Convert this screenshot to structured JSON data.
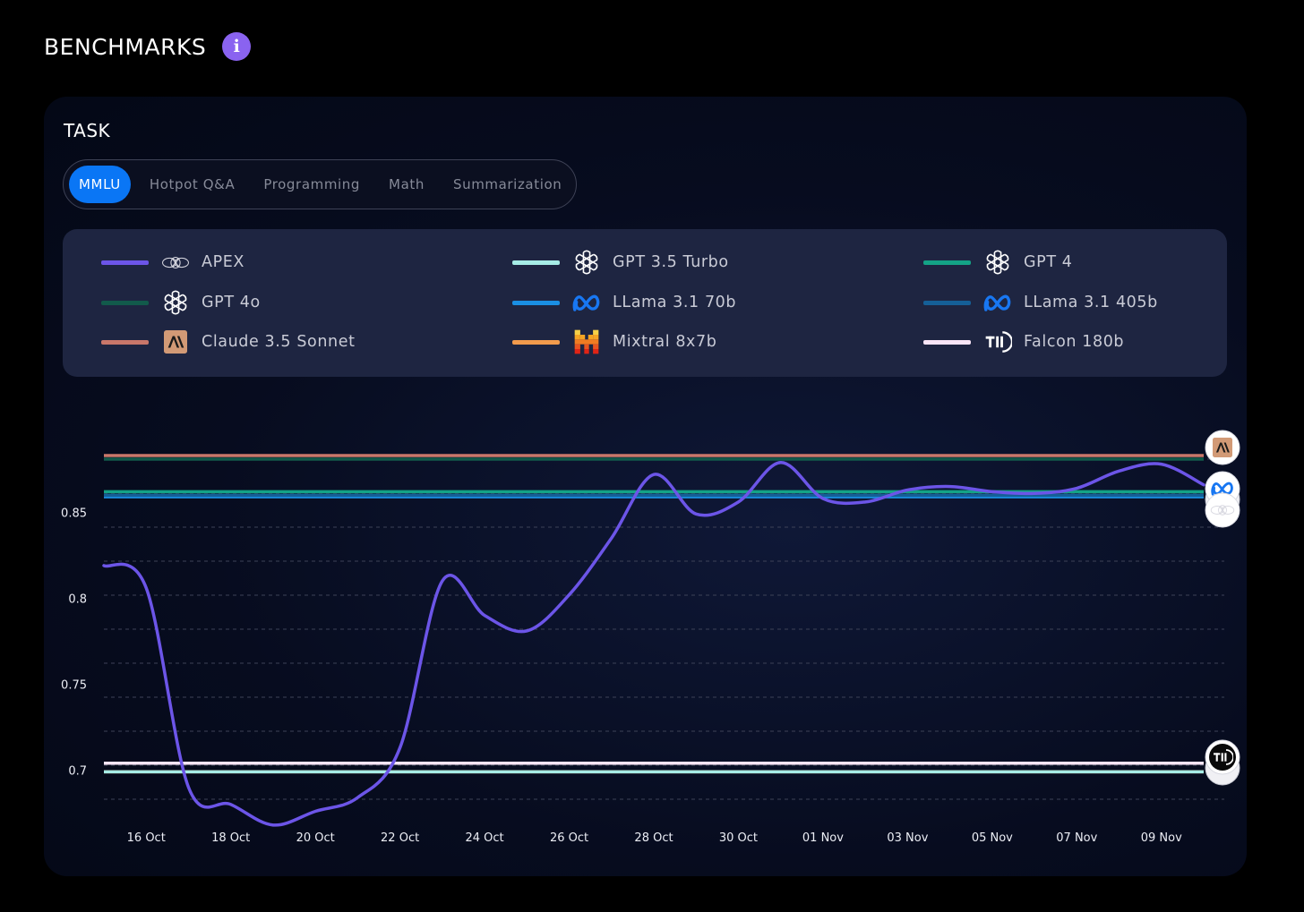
{
  "header": {
    "title": "BENCHMARKS",
    "info_icon": "info-icon"
  },
  "task": {
    "label": "TASK",
    "tabs": [
      "MMLU",
      "Hotpot Q&A",
      "Programming",
      "Math",
      "Summarization"
    ],
    "active_tab": "MMLU"
  },
  "legend": [
    {
      "name": "APEX",
      "color": "#6c55e8",
      "icon": "apex-logo-icon"
    },
    {
      "name": "GPT 3.5 Turbo",
      "color": "#a6ece6",
      "icon": "openai-logo-icon"
    },
    {
      "name": "GPT 4",
      "color": "#14a386",
      "icon": "openai-logo-icon"
    },
    {
      "name": "GPT 4o",
      "color": "#125a4b",
      "icon": "openai-logo-icon"
    },
    {
      "name": "LLama 3.1 70b",
      "color": "#1a8fe3",
      "icon": "meta-logo-icon"
    },
    {
      "name": "LLama 3.1 405b",
      "color": "#155f97",
      "icon": "meta-logo-icon"
    },
    {
      "name": "Claude 3.5 Sonnet",
      "color": "#c9776a",
      "icon": "anthropic-logo-icon"
    },
    {
      "name": "Mixtral 8x7b",
      "color": "#f29b4c",
      "icon": "mistral-logo-icon"
    },
    {
      "name": "Falcon 180b",
      "color": "#f9e5f6",
      "icon": "tii-logo-icon"
    }
  ],
  "chart_data": {
    "type": "line",
    "x_ticks": [
      "16 Oct",
      "18 Oct",
      "20 Oct",
      "22 Oct",
      "24 Oct",
      "26 Oct",
      "28 Oct",
      "30 Oct",
      "01 Nov",
      "03 Nov",
      "05 Nov",
      "07 Nov",
      "09 Nov"
    ],
    "x_range": [
      "15 Oct",
      "10 Nov"
    ],
    "y_ticks": [
      "0.7",
      "0.75",
      "0.8",
      "0.85"
    ],
    "ylim": [
      0.67,
      0.895
    ],
    "grid": "horizontal dashed",
    "series": [
      {
        "name": "APEX",
        "color": "#6c55e8",
        "x": [
          "15 Oct",
          "16 Oct",
          "17 Oct",
          "18 Oct",
          "19 Oct",
          "20 Oct",
          "21 Oct",
          "22 Oct",
          "23 Oct",
          "24 Oct",
          "25 Oct",
          "26 Oct",
          "27 Oct",
          "28 Oct",
          "29 Oct",
          "30 Oct",
          "31 Oct",
          "01 Nov",
          "02 Nov",
          "03 Nov",
          "04 Nov",
          "05 Nov",
          "06 Nov",
          "07 Nov",
          "08 Nov",
          "09 Nov",
          "10 Nov"
        ],
        "values": [
          0.819,
          0.806,
          0.69,
          0.68,
          0.668,
          0.676,
          0.684,
          0.713,
          0.81,
          0.79,
          0.781,
          0.802,
          0.835,
          0.872,
          0.849,
          0.856,
          0.879,
          0.858,
          0.856,
          0.863,
          0.865,
          0.862,
          0.861,
          0.864,
          0.874,
          0.878,
          0.866
        ]
      },
      {
        "name": "Claude 3.5 Sonnet",
        "color": "#c9776a",
        "constant": 0.883
      },
      {
        "name": "GPT 4o",
        "color": "#125a4b",
        "constant": 0.883
      },
      {
        "name": "GPT 4",
        "color": "#14a386",
        "constant": 0.862
      },
      {
        "name": "LLama 3.1 405b",
        "color": "#155f97",
        "constant": 0.859
      },
      {
        "name": "LLama 3.1 70b",
        "color": "#1a8fe3",
        "constant": 0.859
      },
      {
        "name": "Falcon 180b",
        "color": "#f9e5f6",
        "constant": 0.704
      },
      {
        "name": "GPT 3.5 Turbo",
        "color": "#a6ece6",
        "constant": 0.699
      },
      {
        "name": "Mixtral 8x7b",
        "color": "#f29b4c",
        "constant": 0.699
      }
    ],
    "end_markers": [
      "anthropic-logo-icon",
      "meta-logo-icon",
      "apex-logo-icon",
      "tii-logo-icon"
    ]
  }
}
